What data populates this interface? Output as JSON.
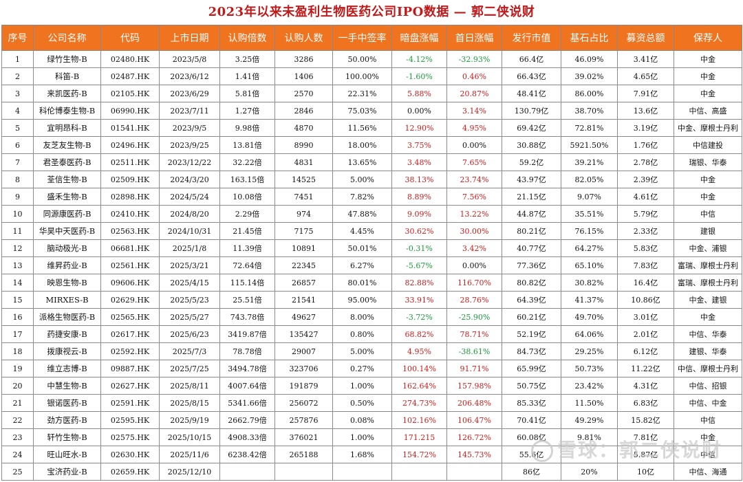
{
  "title": "2023年以来未盈利生物医药公司IPO数据 — 郭二侠说财",
  "headers": [
    "序号",
    "公司名称",
    "代码",
    "上市日期",
    "认购倍数",
    "认购人数",
    "一手中签率",
    "暗盘涨幅",
    "首日涨幅",
    "发行市值",
    "基石占比",
    "募资总额",
    "保荐人"
  ],
  "colors": {
    "header_bg": "#f0741f",
    "title": "#c0191a",
    "up": "#d11a1a",
    "down": "#1a9a3a"
  },
  "rows": [
    {
      "no": "1",
      "name": "绿竹生物-B",
      "code": "02480.HK",
      "date": "2023/5/8",
      "sub": "3.25倍",
      "people": "3286",
      "rate": "50.00%",
      "dark": "-4.12%",
      "first": "-32.93%",
      "mcap": "66.4亿",
      "cs": "46.09%",
      "raise": "3.41亿",
      "sponsor": "中金"
    },
    {
      "no": "2",
      "name": "科笛-B",
      "code": "02487.HK",
      "date": "2023/6/12",
      "sub": "1.41倍",
      "people": "1406",
      "rate": "100.00%",
      "dark": "-1.60%",
      "first": "0.46%",
      "mcap": "66.43亿",
      "cs": "39.02%",
      "raise": "4.65亿",
      "sponsor": "中金"
    },
    {
      "no": "3",
      "name": "来凯医药-B",
      "code": "02105.HK",
      "date": "2023/6/29",
      "sub": "5.81倍",
      "people": "2570",
      "rate": "22.31%",
      "dark": "5.88%",
      "first": "20.87%",
      "mcap": "48.41亿",
      "cs": "86.00%",
      "raise": "7.91亿",
      "sponsor": "中金"
    },
    {
      "no": "4",
      "name": "科伦博泰生物-B",
      "code": "06990.HK",
      "date": "2023/7/11",
      "sub": "1.27倍",
      "people": "2846",
      "rate": "75.03%",
      "dark": "0.00%",
      "first": "3.14%",
      "mcap": "130.79亿",
      "cs": "38.70%",
      "raise": "13.6亿",
      "sponsor": "中信、高盛"
    },
    {
      "no": "5",
      "name": "宜明昂科-B",
      "code": "01541.HK",
      "date": "2023/9/5",
      "sub": "9.98倍",
      "people": "4870",
      "rate": "11.56%",
      "dark": "12.90%",
      "first": "4.95%",
      "mcap": "69.42亿",
      "cs": "72.81%",
      "raise": "3.19亿",
      "sponsor": "中金、摩根士丹利"
    },
    {
      "no": "6",
      "name": "友芝友生物-B",
      "code": "02496.HK",
      "date": "2023/9/25",
      "sub": "13.81倍",
      "people": "8990",
      "rate": "18.00%",
      "dark": "3.75%",
      "first": "0.00%",
      "mcap": "30.88亿",
      "cs": "5921.50%",
      "raise": "1.76亿",
      "sponsor": "中信建投"
    },
    {
      "no": "7",
      "name": "君圣泰医药-B",
      "code": "02511.HK",
      "date": "2023/12/22",
      "sub": "32.22倍",
      "people": "4831",
      "rate": "13.65%",
      "dark": "3.48%",
      "first": "7.65%",
      "mcap": "59.2亿",
      "cs": "39.21%",
      "raise": "2.78亿",
      "sponsor": "瑞银、华泰"
    },
    {
      "no": "8",
      "name": "荃信生物-B",
      "code": "02509.HK",
      "date": "2024/3/20",
      "sub": "163.15倍",
      "people": "14525",
      "rate": "5.00%",
      "dark": "38.13%",
      "first": "23.74%",
      "mcap": "43.97亿",
      "cs": "82.05%",
      "raise": "2.39亿",
      "sponsor": "中金"
    },
    {
      "no": "9",
      "name": "盛禾生物-B",
      "code": "02898.HK",
      "date": "2024/5/24",
      "sub": "10.08倍",
      "people": "7451",
      "rate": "7.82%",
      "dark": "8.89%",
      "first": "7.56%",
      "mcap": "21.15亿",
      "cs": "9.07%",
      "raise": "4.61亿",
      "sponsor": "中金"
    },
    {
      "no": "10",
      "name": "同源康医药-B",
      "code": "02410.HK",
      "date": "2024/8/20",
      "sub": "2.29倍",
      "people": "974",
      "rate": "47.88%",
      "dark": "9.09%",
      "first": "13.22%",
      "mcap": "44.87亿",
      "cs": "35.51%",
      "raise": "5.79亿",
      "sponsor": "中信"
    },
    {
      "no": "11",
      "name": "华昊中天医药-B",
      "code": "02563.HK",
      "date": "2024/10/31",
      "sub": "21.45倍",
      "people": "7175",
      "rate": "4.45%",
      "dark": "30.62%",
      "first": "30.00%",
      "mcap": "80.21亿",
      "cs": "76.15%",
      "raise": "2.33亿",
      "sponsor": "建银"
    },
    {
      "no": "12",
      "name": "脑动极光-B",
      "code": "06681.HK",
      "date": "2025/1/8",
      "sub": "11.39倍",
      "people": "10891",
      "rate": "50.01%",
      "dark": "-0.31%",
      "first": "3.42%",
      "mcap": "40.77亿",
      "cs": "64.27%",
      "raise": "5.83亿",
      "sponsor": "中金、浦银"
    },
    {
      "no": "13",
      "name": "维昇药业-B",
      "code": "02561.HK",
      "date": "2025/3/21",
      "sub": "72.64倍",
      "people": "22345",
      "rate": "6.27%",
      "dark": "-5.67%",
      "first": "0.00%",
      "mcap": "77.36亿",
      "cs": "65.10%",
      "raise": "7.83亿",
      "sponsor": "富瑞、摩根士丹利"
    },
    {
      "no": "14",
      "name": "映恩生物-B",
      "code": "09606.HK",
      "date": "2025/4/15",
      "sub": "115.14倍",
      "people": "26857",
      "rate": "80.01%",
      "dark": "82.88%",
      "first": "116.70%",
      "mcap": "80.82亿",
      "cs": "30.82%",
      "raise": "16.4亿",
      "sponsor": "富瑞、摩根士丹利"
    },
    {
      "no": "15",
      "name": "MIRXES-B",
      "code": "02629.HK",
      "date": "2025/5/23",
      "sub": "25.51倍",
      "people": "21541",
      "rate": "95.00%",
      "dark": "33.91%",
      "first": "28.76%",
      "mcap": "64.39亿",
      "cs": "41.37%",
      "raise": "10.86亿",
      "sponsor": "中金、建银"
    },
    {
      "no": "16",
      "name": "派格生物医药-B",
      "code": "02565.HK",
      "date": "2025/5/27",
      "sub": "743.78倍",
      "people": "49627",
      "rate": "8.00%",
      "dark": "-3.72%",
      "first": "-25.90%",
      "mcap": "60.21亿",
      "cs": "49.70%",
      "raise": "3.01亿",
      "sponsor": "中金"
    },
    {
      "no": "17",
      "name": "药捷安康-B",
      "code": "02617.HK",
      "date": "2025/6/23",
      "sub": "3419.87倍",
      "people": "135427",
      "rate": "0.80%",
      "dark": "68.82%",
      "first": "78.71%",
      "mcap": "52.19亿",
      "cs": "64.06%",
      "raise": "2.01亿",
      "sponsor": "中信、华泰"
    },
    {
      "no": "18",
      "name": "拨康视云-B",
      "code": "02592.HK",
      "date": "2025/7/3",
      "sub": "78.78倍",
      "people": "29007",
      "rate": "5.00%",
      "dark": "4.95%",
      "first": "-38.61%",
      "mcap": "84.73亿",
      "cs": "29.25%",
      "raise": "6.12亿",
      "sponsor": "建银、华泰"
    },
    {
      "no": "19",
      "name": "维立志博-B",
      "code": "09887.HK",
      "date": "2025/7/25",
      "sub": "3494.78倍",
      "people": "323706",
      "rate": "0.27%",
      "dark": "100.14%",
      "first": "91.71%",
      "mcap": "65.99亿",
      "cs": "50.73%",
      "raise": "11.22亿",
      "sponsor": "中信、摩根士丹利"
    },
    {
      "no": "20",
      "name": "中慧生物-B",
      "code": "02627.HK",
      "date": "2025/8/11",
      "sub": "4007.64倍",
      "people": "191879",
      "rate": "1.00%",
      "dark": "162.64%",
      "first": "157.98%",
      "mcap": "50.75亿",
      "cs": "23.42%",
      "raise": "4.31亿",
      "sponsor": "中信、招银"
    },
    {
      "no": "21",
      "name": "银诺医药-B",
      "code": "02591.HK",
      "date": "2025/8/15",
      "sub": "5341.66倍",
      "people": "256072",
      "rate": "0.50%",
      "dark": "274.73%",
      "first": "206.48%",
      "mcap": "85.33亿",
      "cs": "11.50%",
      "raise": "6.83亿",
      "sponsor": "中信、中金"
    },
    {
      "no": "22",
      "name": "劲方医药-B",
      "code": "02595.HK",
      "date": "2025/9/19",
      "sub": "2662.79倍",
      "people": "257876",
      "rate": "0.08%",
      "dark": "102.16%",
      "first": "106.47%",
      "mcap": "70.41亿",
      "cs": "49.29%",
      "raise": "15.82亿",
      "sponsor": "中信"
    },
    {
      "no": "23",
      "name": "轩竹生物-B",
      "code": "02575.HK",
      "date": "2025/10/15",
      "sub": "4908.33倍",
      "people": "376021",
      "rate": "1.00%",
      "dark": "171.215",
      "first": "126.72%",
      "mcap": "60.08亿",
      "cs": "9.81%",
      "raise": "7.81亿",
      "sponsor": "中金"
    },
    {
      "no": "24",
      "name": "旺山旺水-B",
      "code": "02630.HK",
      "date": "2025/11/6",
      "sub": "6238.42倍",
      "people": "265188",
      "rate": "1.68%",
      "dark": "154.72%",
      "first": "145.73%",
      "mcap": "55.6亿",
      "cs": "",
      "raise": "5.87亿",
      "sponsor": "中信"
    },
    {
      "no": "25",
      "name": "宝济药业-B",
      "code": "02659.HK",
      "date": "2025/12/10",
      "sub": "",
      "people": "",
      "rate": "",
      "dark": "",
      "first": "",
      "mcap": "86亿",
      "cs": "20%",
      "raise": "10亿",
      "sponsor": "中信、海通"
    }
  ],
  "watermark": "雪球：郭二侠说财"
}
